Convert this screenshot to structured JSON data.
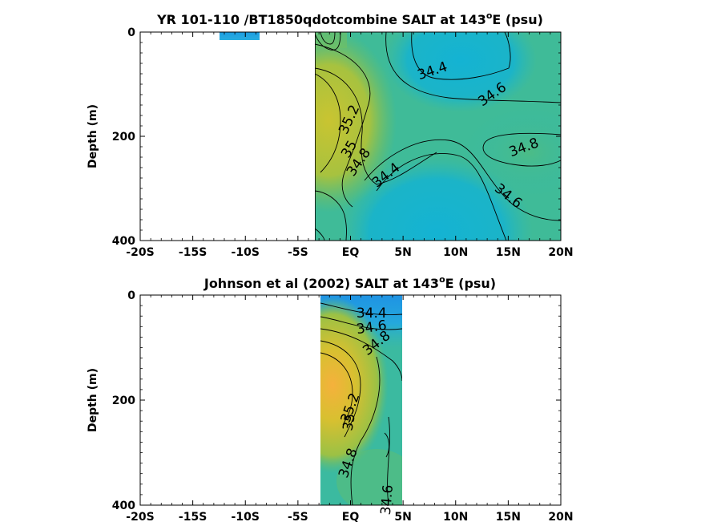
{
  "chart_data": [
    {
      "type": "contour",
      "title_main": "YR 101-110 /BT1850qdotcombine SALT at 143",
      "title_sup": "o",
      "title_tail": "E (psu)",
      "ylabel": "Depth (m)",
      "xlabel": "",
      "x_ticks": [
        "-20S",
        "-15S",
        "-10S",
        "-5S",
        "EQ",
        "5N",
        "10N",
        "15N",
        "20N"
      ],
      "x_tick_values": [
        -20,
        -15,
        -10,
        -5,
        0,
        5,
        10,
        15,
        20
      ],
      "y_ticks": [
        "0",
        "200",
        "400"
      ],
      "y_tick_values": [
        0,
        200,
        400
      ],
      "xlim": [
        -20,
        20
      ],
      "ylim": [
        0,
        400
      ],
      "y_reversed": true,
      "colormap": "parula",
      "data_extent": {
        "x": [
          -3,
          20
        ],
        "y": [
          0,
          400
        ]
      },
      "extra_patch": {
        "x": [
          -12,
          -8
        ],
        "y": [
          0,
          15
        ]
      },
      "contour_labels": [
        {
          "text": "34.4",
          "x": 7.8,
          "y": 75,
          "angle": -18
        },
        {
          "text": "34.6",
          "x": 13.5,
          "y": 120,
          "angle": -35
        },
        {
          "text": "35.2",
          "x": -0.1,
          "y": 168,
          "angle": -65
        },
        {
          "text": "34.8",
          "x": 16.5,
          "y": 222,
          "angle": -20
        },
        {
          "text": "35",
          "x": -0.1,
          "y": 225,
          "angle": -60
        },
        {
          "text": "34.8",
          "x": 0.8,
          "y": 250,
          "angle": -55
        },
        {
          "text": "34.4",
          "x": 3.4,
          "y": 275,
          "angle": -38
        },
        {
          "text": "34.6",
          "x": 15.0,
          "y": 315,
          "angle": 38
        }
      ]
    },
    {
      "type": "contour",
      "title_main": "Johnson et al (2002) SALT at 143",
      "title_sup": "o",
      "title_tail": "E (psu)",
      "ylabel": "Depth (m)",
      "xlabel": "",
      "x_ticks": [
        "-20S",
        "-15S",
        "-10S",
        "-5S",
        "EQ",
        "5N",
        "10N",
        "15N",
        "20N"
      ],
      "x_tick_values": [
        -20,
        -15,
        -10,
        -5,
        0,
        5,
        10,
        15,
        20
      ],
      "y_ticks": [
        "0",
        "200",
        "400"
      ],
      "y_tick_values": [
        0,
        200,
        400
      ],
      "xlim": [
        -20,
        20
      ],
      "ylim": [
        0,
        400
      ],
      "y_reversed": true,
      "colormap": "parula",
      "data_extent": {
        "x": [
          -2.5,
          5
        ],
        "y": [
          0,
          400
        ]
      },
      "contour_labels": [
        {
          "text": "34.4",
          "x": 2.0,
          "y": 35,
          "angle": 0
        },
        {
          "text": "34.6",
          "x": 2.0,
          "y": 62,
          "angle": -8
        },
        {
          "text": "34.8",
          "x": 2.5,
          "y": 92,
          "angle": -38
        },
        {
          "text": "35.2",
          "x": 0.0,
          "y": 215,
          "angle": -70
        },
        {
          "text": "35",
          "x": -0.1,
          "y": 242,
          "angle": -80
        },
        {
          "text": "34.8",
          "x": -0.2,
          "y": 320,
          "angle": -70
        },
        {
          "text": "34.6",
          "x": 3.5,
          "y": 390,
          "angle": -85
        }
      ]
    }
  ]
}
